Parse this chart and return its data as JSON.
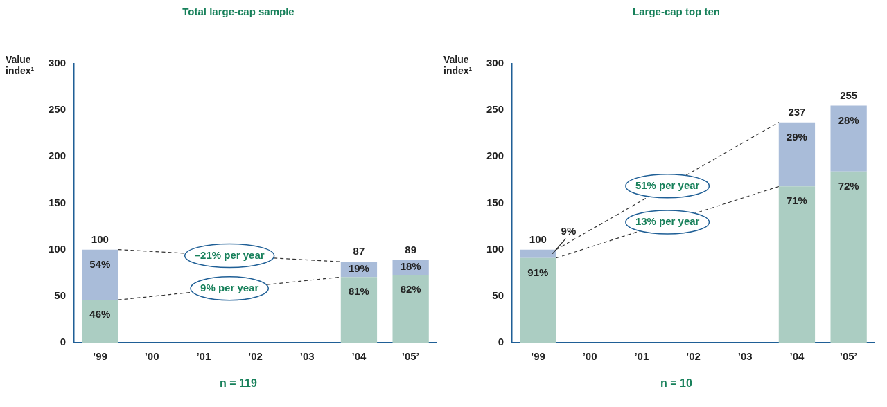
{
  "chart_data": [
    {
      "type": "bar",
      "title": "Total large-cap sample",
      "ylabel": "Value index¹",
      "categories": [
        "’99",
        "’00",
        "’01",
        "’02",
        "’03",
        "’04",
        "’05²"
      ],
      "stacked": true,
      "ylim": [
        0,
        300
      ],
      "yticks": [
        0,
        50,
        100,
        150,
        200,
        250,
        300
      ],
      "grid": false,
      "legend": false,
      "series": [
        {
          "color": "#abcdc2",
          "values": [
            46,
            null,
            null,
            null,
            null,
            70.5,
            73
          ]
        },
        {
          "color": "#a9bcd9",
          "values": [
            54,
            null,
            null,
            null,
            null,
            16.5,
            16
          ]
        }
      ],
      "totals": [
        "100",
        null,
        null,
        null,
        null,
        "87",
        "89"
      ],
      "annotations": [
        "–21% per year",
        "9% per year",
        "n = 119",
        {
          "text": "46%",
          "x": "’99",
          "y": 46
        },
        {
          "text": "54%",
          "x": "’99",
          "y": 100
        },
        {
          "text": "81%",
          "x": "’04",
          "y": 70.5
        },
        {
          "text": "19%",
          "x": "’04",
          "y": 87
        },
        {
          "text": "82%",
          "x": "’05²",
          "y": 73
        },
        {
          "text": "18%",
          "x": "’05²",
          "y": 89
        }
      ]
    },
    {
      "type": "bar",
      "title": "Large-cap top ten",
      "ylabel": "Value index¹",
      "categories": [
        "’99",
        "’00",
        "’01",
        "’02",
        "’03",
        "’04",
        "’05²"
      ],
      "stacked": true,
      "ylim": [
        0,
        300
      ],
      "yticks": [
        0,
        50,
        100,
        150,
        200,
        250,
        300
      ],
      "grid": false,
      "legend": false,
      "series": [
        {
          "color": "#abcdc2",
          "values": [
            91,
            null,
            null,
            null,
            null,
            168,
            184
          ]
        },
        {
          "color": "#a9bcd9",
          "values": [
            9,
            null,
            null,
            null,
            null,
            69,
            71
          ]
        }
      ],
      "totals": [
        "100",
        null,
        null,
        null,
        null,
        "237",
        "255"
      ],
      "annotations": [
        "51% per year",
        "13% per year",
        "n = 10",
        {
          "text": "91%",
          "x": "’99",
          "y": 91
        },
        {
          "text": "9%",
          "x": "’99",
          "y": 100
        },
        {
          "text": "71%",
          "x": "’04",
          "y": 168
        },
        {
          "text": "29%",
          "x": "’04",
          "y": 237
        },
        {
          "text": "72%",
          "x": "’05²",
          "y": 184
        },
        {
          "text": "28%",
          "x": "’05²",
          "y": 255
        }
      ]
    }
  ]
}
